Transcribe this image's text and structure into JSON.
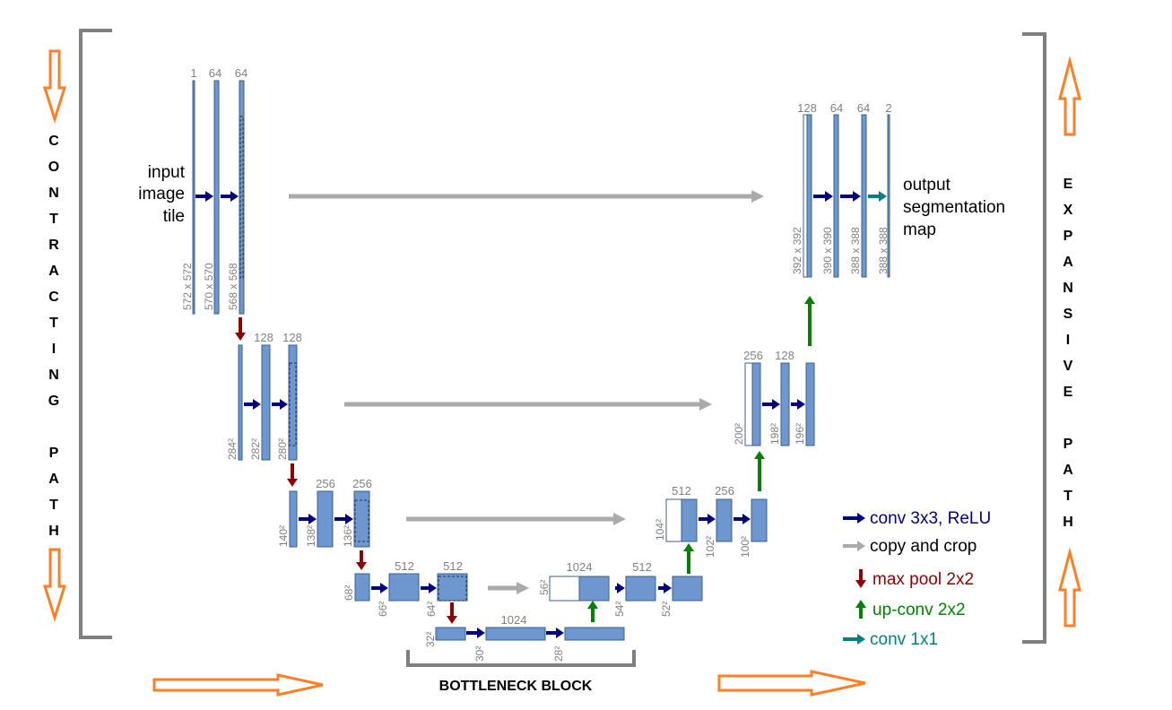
{
  "labels": {
    "input": [
      "input",
      "image",
      "tile"
    ],
    "output": [
      "output",
      "segmentation",
      "map"
    ],
    "contracting": [
      "C",
      "O",
      "N",
      "T",
      "R",
      "A",
      "C",
      "T",
      "I",
      "N",
      "G",
      "",
      "P",
      "A",
      "T",
      "H"
    ],
    "expansive": [
      "E",
      "X",
      "P",
      "A",
      "N",
      "S",
      "I",
      "V",
      "E",
      "",
      "P",
      "A",
      "T",
      "H"
    ],
    "bottleneck": "BOTTLENECK BLOCK"
  },
  "channels": {
    "l1": [
      "1",
      "64",
      "64"
    ],
    "l2": [
      "128",
      "128"
    ],
    "l3": [
      "256",
      "256"
    ],
    "l4": [
      "512",
      "512"
    ],
    "l5": [
      "1024"
    ],
    "u4": [
      "1024",
      "512"
    ],
    "u3": [
      "512",
      "256"
    ],
    "u2": [
      "256",
      "128"
    ],
    "u1": [
      "128",
      "64",
      "64",
      "2"
    ]
  },
  "dims": {
    "l1": [
      "572 x 572",
      "570 x 570",
      "568 x 568"
    ],
    "l2": [
      "284²",
      "282²",
      "280²"
    ],
    "l3": [
      "140²",
      "138²",
      "136²"
    ],
    "l4": [
      "68²",
      "66²",
      "64²"
    ],
    "l5": [
      "32²",
      "30²",
      "28²"
    ],
    "u4": [
      "56²",
      "54²",
      "52²"
    ],
    "u3": [
      "104²",
      "102²",
      "100²"
    ],
    "u2": [
      "200²",
      "198²",
      "196²"
    ],
    "u1": [
      "392 x 392",
      "390 x 390",
      "388 x 388",
      "388 x 388"
    ]
  },
  "legend": [
    {
      "label": "conv 3x3, ReLU",
      "color": "#00007f",
      "kind": "right"
    },
    {
      "label": "copy and crop",
      "color": "#aaaaaa",
      "kind": "right"
    },
    {
      "label": "max pool 2x2",
      "color": "#8b0000",
      "kind": "down"
    },
    {
      "label": "up-conv 2x2",
      "color": "#008000",
      "kind": "up"
    },
    {
      "label": "conv 1x1",
      "color": "#008080",
      "kind": "right"
    }
  ],
  "colors": {
    "block_fill": "#6d97ce",
    "block_stroke": "#3b5f8f",
    "conv": "#00007f",
    "copy": "#aaaaaa",
    "pool": "#8b0000",
    "upconv": "#008000",
    "conv1x1": "#008080",
    "orange": "#ff7f27",
    "bracket": "#7f7f7f"
  }
}
